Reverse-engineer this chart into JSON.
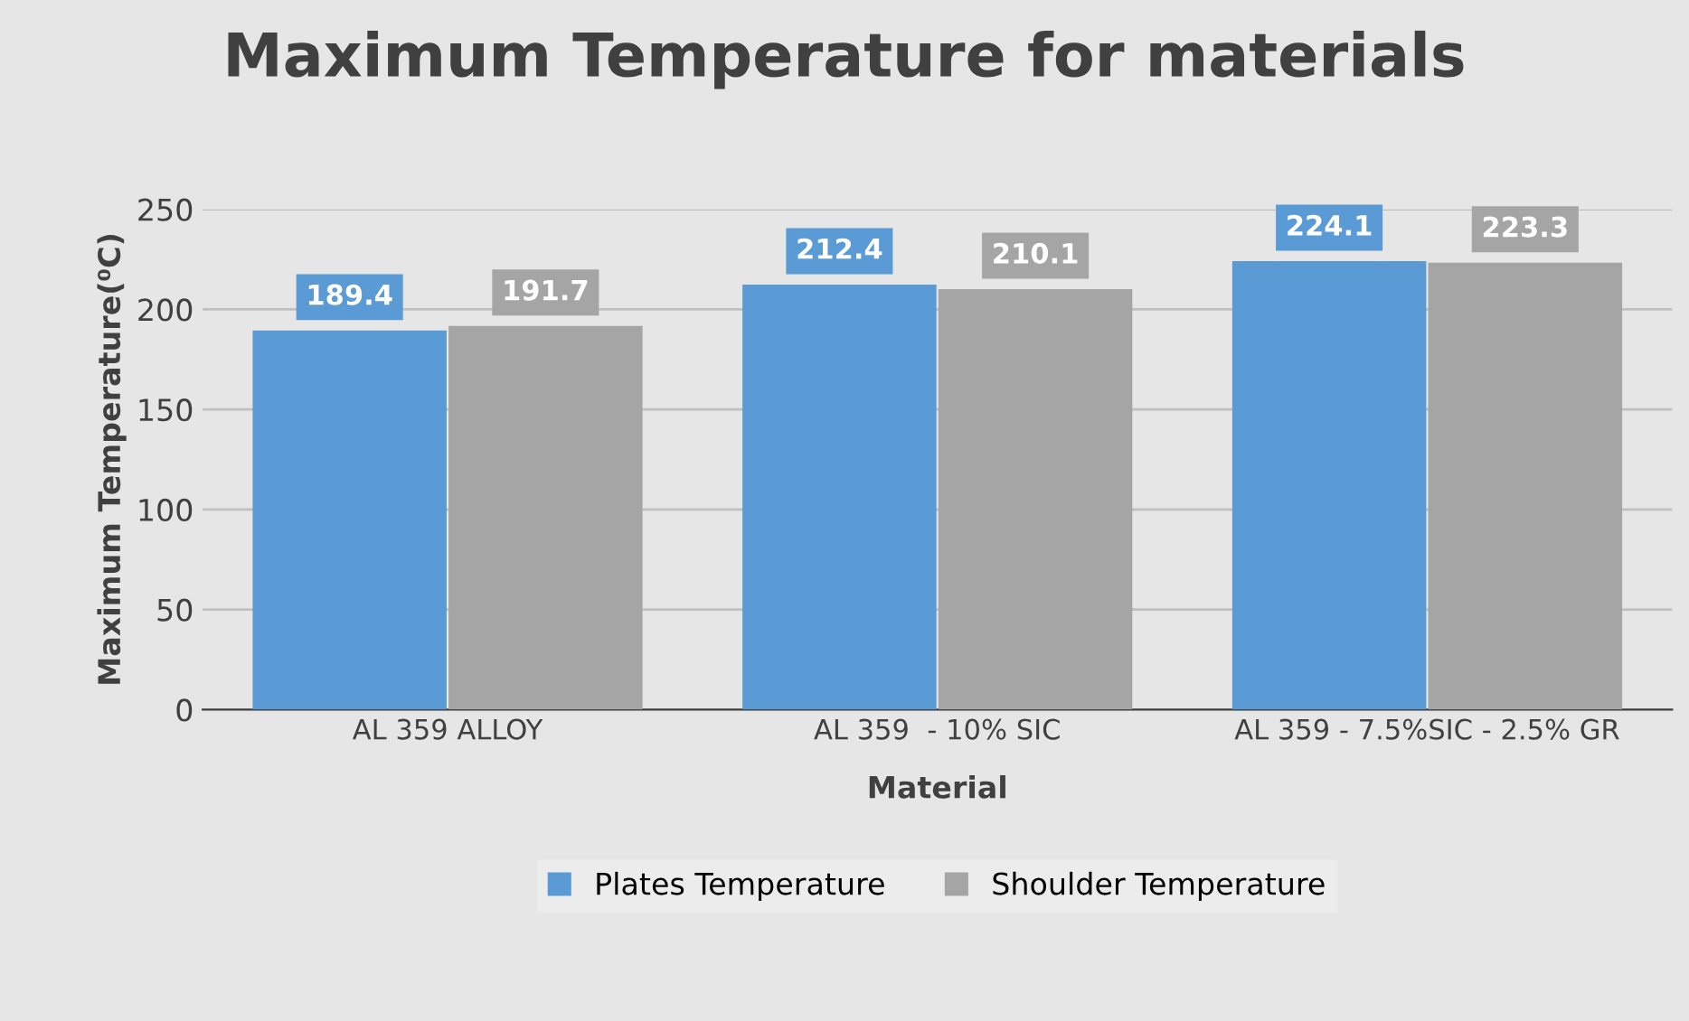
{
  "chart_data": {
    "type": "bar",
    "title": "Maximum Temperature for materials",
    "xlabel": "Material",
    "ylabel": "Maximum Temperature(⁰C)",
    "categories": [
      "AL 359 ALLOY",
      "AL 359  - 10% SIC",
      "AL 359 - 7.5%SIC - 2.5% GR"
    ],
    "series": [
      {
        "name": "Plates Temperature",
        "color": "#5b9bd5",
        "values": [
          189.4,
          212.4,
          224.1
        ]
      },
      {
        "name": "Shoulder Temperature",
        "color": "#a5a5a5",
        "values": [
          191.7,
          210.1,
          223.3
        ]
      }
    ],
    "ylim": [
      0,
      250
    ],
    "yticks": [
      0,
      50,
      100,
      150,
      200,
      250
    ],
    "grid": "y",
    "legend": "bottom",
    "data_labels": true
  }
}
